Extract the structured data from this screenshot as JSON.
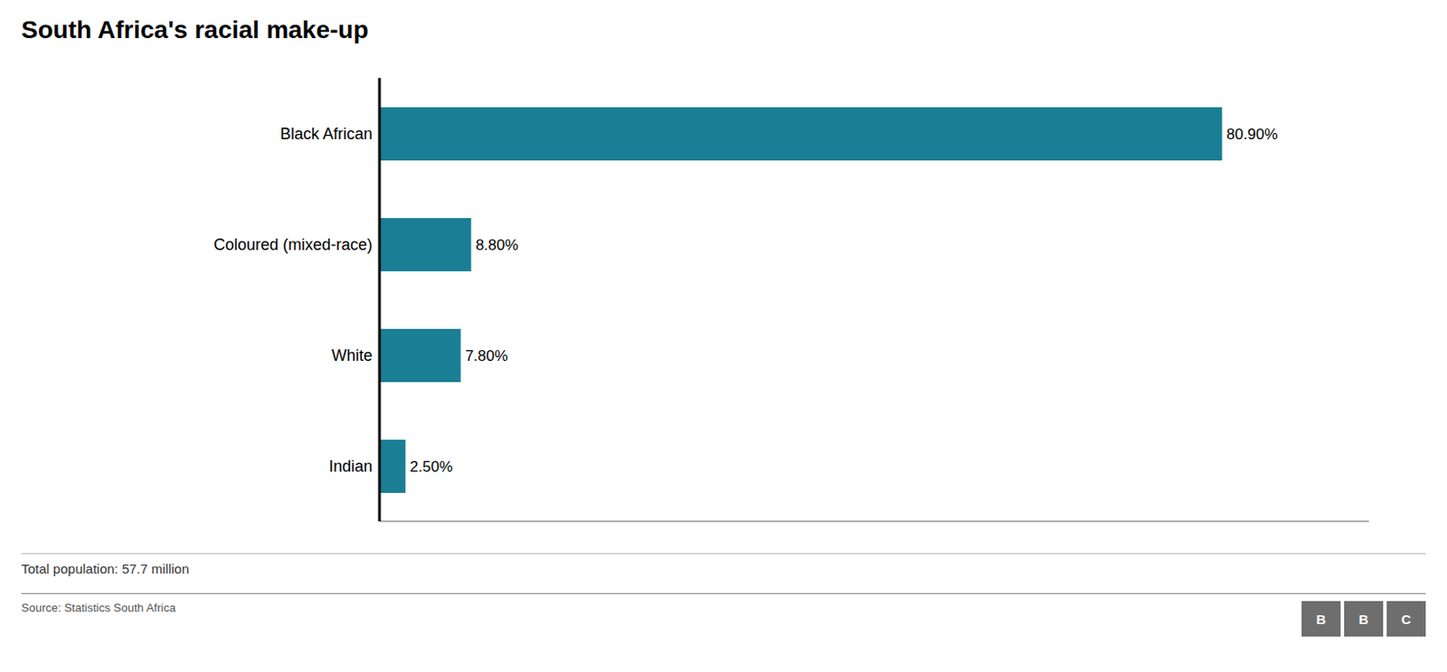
{
  "chart_data": {
    "type": "bar",
    "title": "South Africa's racial make-up",
    "categories": [
      "Black African",
      "Coloured (mixed-race)",
      "White",
      "Indian"
    ],
    "values": [
      80.9,
      8.8,
      7.8,
      2.5
    ],
    "value_labels": [
      "80.90%",
      "8.80%",
      "7.80%",
      "2.50%"
    ],
    "color": "#1a7f95",
    "orientation": "horizontal",
    "data_labels": true,
    "tick_labels": "y",
    "grid": false,
    "xlim": [
      0,
      95
    ],
    "annotations": [
      "Total population: 57.7 million",
      "Source: Statistics South Africa",
      "B",
      "B",
      "C"
    ]
  }
}
